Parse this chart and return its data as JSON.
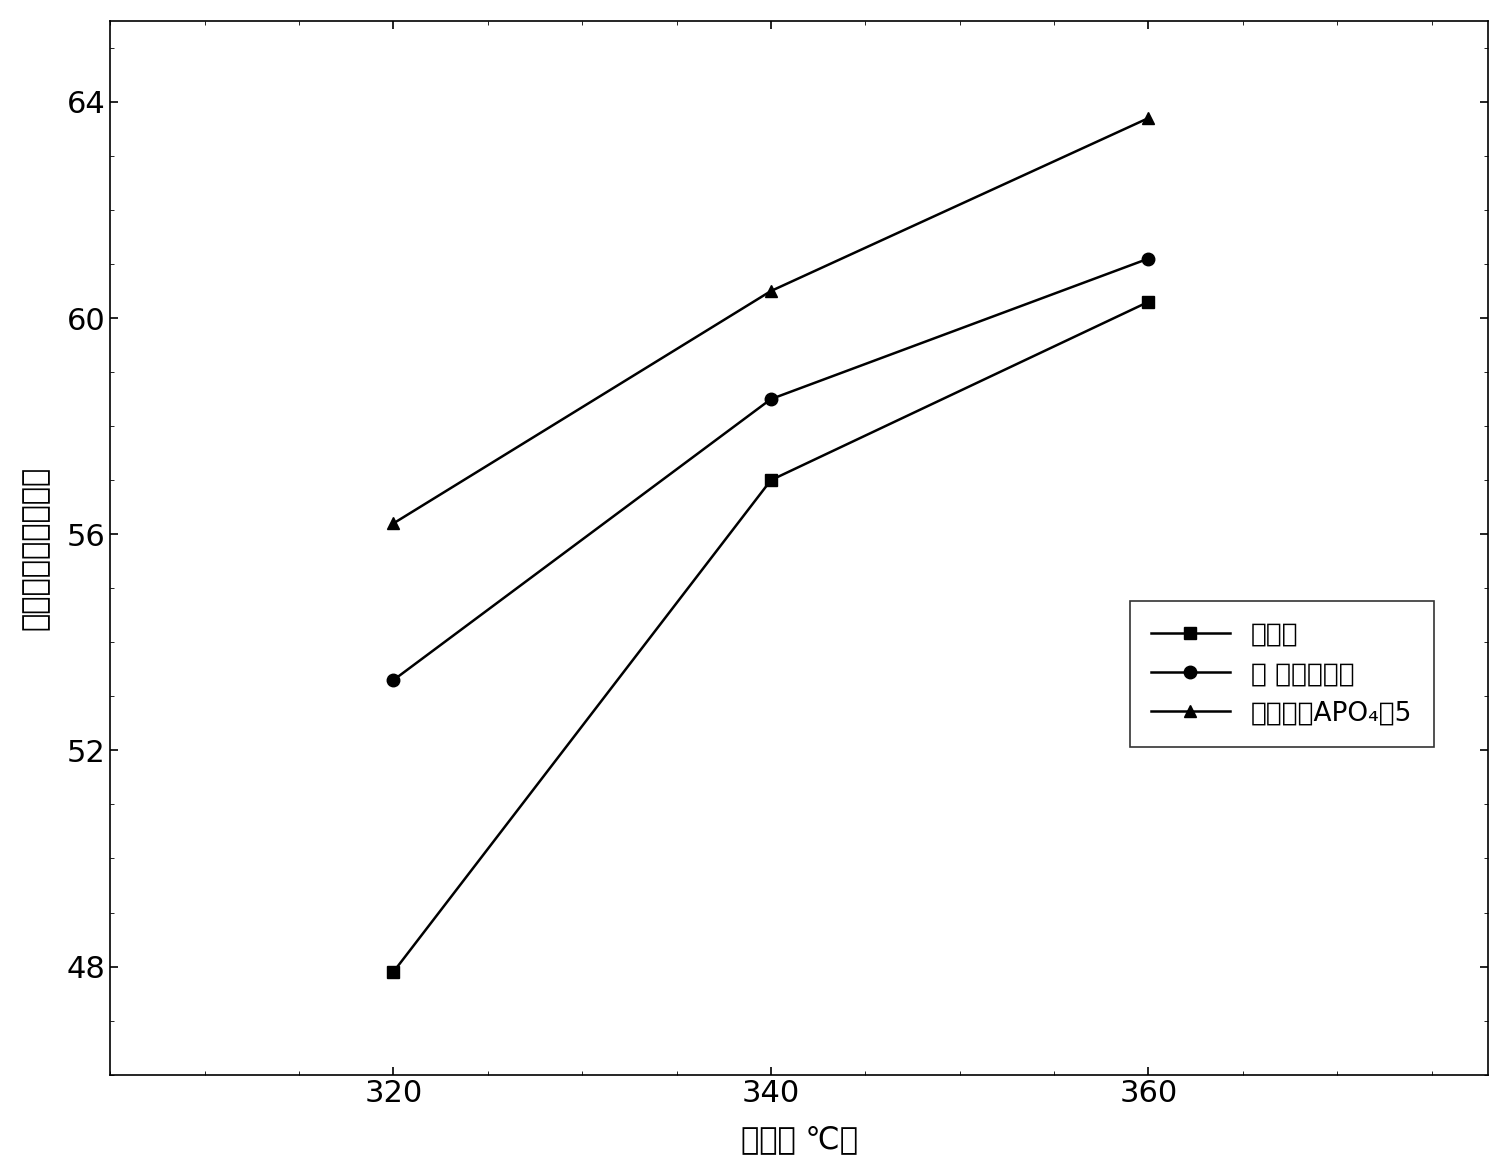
{
  "x": [
    320,
    340,
    360
  ],
  "series1_y": [
    47.9,
    57.0,
    60.3
  ],
  "series2_y": [
    53.3,
    58.5,
    61.1
  ],
  "series3_y": [
    56.2,
    60.5,
    63.7
  ],
  "series1_label": "氧化铝",
  "series2_label": "磷 改性氧化铝",
  "series3_label": "氧化铝＋APO₄－5",
  "xlabel": "温度（ ℃）",
  "ylabel": "四氢萝转化率（％）",
  "xlim": [
    305,
    378
  ],
  "ylim": [
    46.0,
    65.5
  ],
  "yticks": [
    48,
    52,
    56,
    60,
    64
  ],
  "xticks": [
    320,
    340,
    360
  ],
  "line_color": "#000000",
  "marker_size": 9,
  "linewidth": 1.8,
  "label_fontsize": 22,
  "tick_fontsize": 22,
  "legend_fontsize": 19
}
